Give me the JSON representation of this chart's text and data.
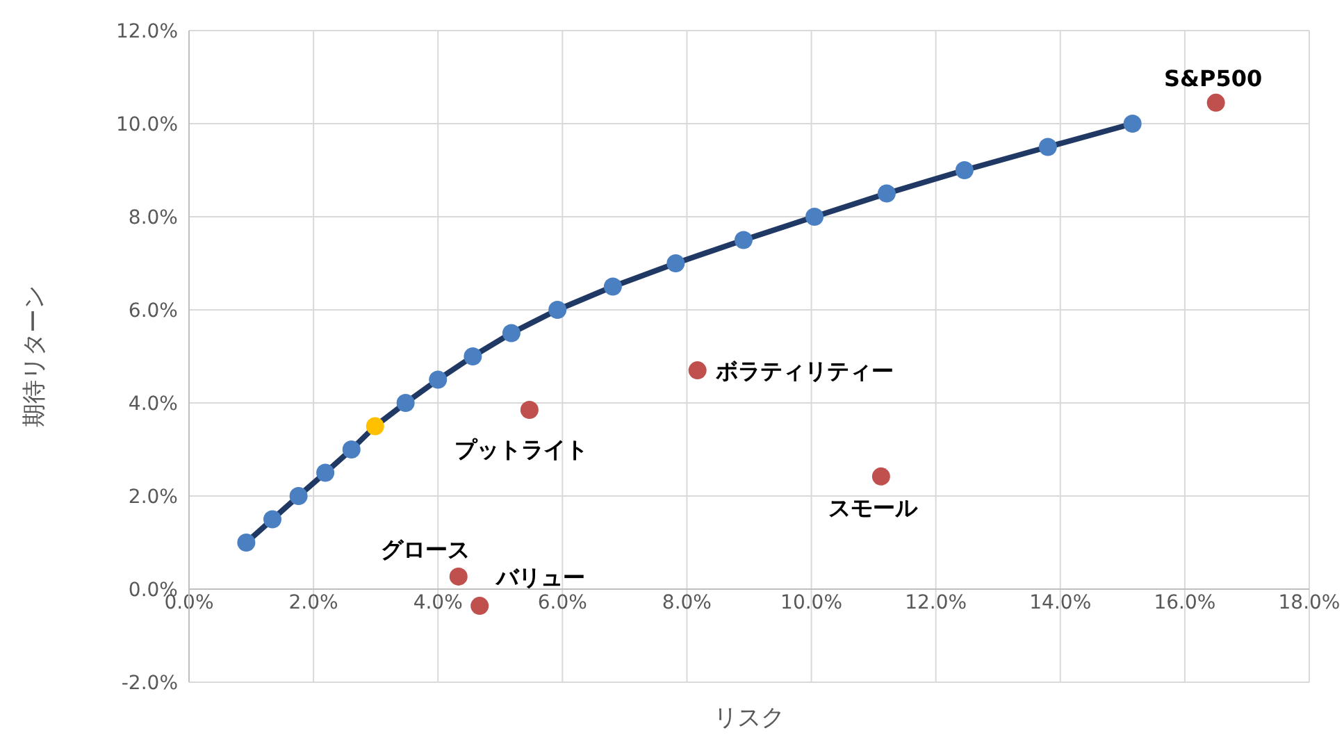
{
  "chart_data": {
    "type": "scatter",
    "xlabel": "リスク",
    "ylabel": "期待リターン",
    "xlim": [
      0,
      18
    ],
    "ylim": [
      -2,
      12
    ],
    "xticks": [
      {
        "value": 0,
        "label": "0.0%"
      },
      {
        "value": 2,
        "label": "2.0%"
      },
      {
        "value": 4,
        "label": "4.0%"
      },
      {
        "value": 6,
        "label": "6.0%"
      },
      {
        "value": 8,
        "label": "8.0%"
      },
      {
        "value": 10,
        "label": "10.0%"
      },
      {
        "value": 12,
        "label": "12.0%"
      },
      {
        "value": 14,
        "label": "14.0%"
      },
      {
        "value": 16,
        "label": "16.0%"
      },
      {
        "value": 18,
        "label": "18.0%"
      }
    ],
    "yticks": [
      {
        "value": -2,
        "label": "-2.0%"
      },
      {
        "value": 0,
        "label": "0.0%"
      },
      {
        "value": 2,
        "label": "2.0%"
      },
      {
        "value": 4,
        "label": "4.0%"
      },
      {
        "value": 6,
        "label": "6.0%"
      },
      {
        "value": 8,
        "label": "8.0%"
      },
      {
        "value": 10,
        "label": "10.0%"
      },
      {
        "value": 12,
        "label": "12.0%"
      }
    ],
    "grid": true,
    "series": [
      {
        "type": "line",
        "marker": "none",
        "color": "#1f3864",
        "x": [
          0.92,
          1.34,
          1.76,
          2.19,
          2.61,
          2.99,
          3.48,
          4.0,
          4.56,
          5.18,
          5.92,
          6.81,
          7.82,
          8.91,
          10.05,
          11.21,
          12.46,
          13.8,
          15.16
        ],
        "values": [
          1.0,
          1.5,
          2.0,
          2.5,
          3.0,
          3.5,
          4.0,
          4.5,
          5.0,
          5.5,
          6.0,
          6.5,
          7.0,
          7.5,
          8.0,
          8.5,
          9.0,
          9.5,
          10.0
        ]
      },
      {
        "type": "scatter",
        "marker": "circle",
        "color": "#4a7fc1",
        "x": [
          0.92,
          1.34,
          1.76,
          2.19,
          2.61,
          3.48,
          4.0,
          4.56,
          5.18,
          5.92,
          6.81,
          7.82,
          8.91,
          10.05,
          11.21,
          12.46,
          13.8,
          15.16
        ],
        "values": [
          1.0,
          1.5,
          2.0,
          2.5,
          3.0,
          4.0,
          4.5,
          5.0,
          5.5,
          6.0,
          6.5,
          7.0,
          7.5,
          8.0,
          8.5,
          9.0,
          9.5,
          10.0
        ]
      },
      {
        "type": "scatter",
        "marker": "circle",
        "color": "#ffc000",
        "x": [
          2.99
        ],
        "values": [
          3.5
        ]
      },
      {
        "type": "scatter",
        "marker": "circle",
        "color": "#c0504d",
        "x": [
          16.5,
          8.17,
          5.47,
          11.12,
          4.33,
          4.67
        ],
        "values": [
          10.45,
          4.7,
          3.85,
          2.42,
          0.27,
          -0.36
        ]
      }
    ],
    "annotations": [
      {
        "text": "S&P500",
        "x": 16.5,
        "y": 10.45
      },
      {
        "text": "ボラティリティー",
        "x": 8.17,
        "y": 4.7
      },
      {
        "text": "プットライト",
        "x": 5.47,
        "y": 3.85
      },
      {
        "text": "スモール",
        "x": 11.12,
        "y": 2.42
      },
      {
        "text": "グロース",
        "x": 4.33,
        "y": 0.27
      },
      {
        "text": "バリュー",
        "x": 4.67,
        "y": -0.36
      }
    ]
  }
}
